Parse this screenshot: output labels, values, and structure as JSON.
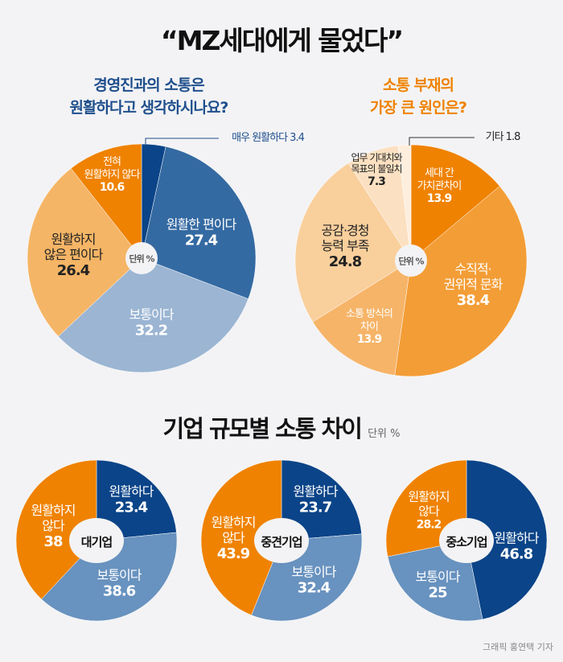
{
  "title": "“MZ세대에게 물었다”",
  "unit_label": "단위 %",
  "colors": {
    "dark_blue": "#0b4488",
    "orange": "#ef8200"
  },
  "chart_data": [
    {
      "type": "pie",
      "title": "경영진과의 소통은 원활하다고 생각하시나요?",
      "title_lines": [
        "경영진과의 소통은",
        "원활하다고 생각하시나요?"
      ],
      "unit": "단위 %",
      "slices": [
        {
          "label": "매우 원활하다",
          "value": 3.4,
          "color": "#0b4488"
        },
        {
          "label": "원활한 편이다",
          "value": 27.4,
          "color": "#346aa2"
        },
        {
          "label": "보통이다",
          "value": 32.2,
          "color": "#9bb5d3"
        },
        {
          "label": "원활하지 않은 편이다",
          "value": 26.4,
          "color": "#f5b566"
        },
        {
          "label": "전혀 원활하지 않다",
          "value": 10.6,
          "color": "#ef8200"
        }
      ]
    },
    {
      "type": "pie",
      "title": "소통 부재의 가장 큰 원인은?",
      "title_lines": [
        "소통 부재의",
        "가장 큰 원인은?"
      ],
      "unit": "단위 %",
      "slices": [
        {
          "label": "세대 간 가치관차이",
          "value": 13.9,
          "color": "#ef8200"
        },
        {
          "label": "수직적· 권위적 문화",
          "value": 38.4,
          "color": "#f39d36"
        },
        {
          "label": "소통 방식의 차이",
          "value": 13.9,
          "color": "#f6b468"
        },
        {
          "label": "공감·경청 능력 부족",
          "value": 24.8,
          "color": "#f9cf9c"
        },
        {
          "label": "업무 기대치와 목표의 불일치",
          "value": 7.3,
          "color": "#fbe0c1"
        },
        {
          "label": "기타",
          "value": 1.8,
          "color": "#fdeedd"
        }
      ]
    },
    {
      "type": "pie",
      "section_title": "기업 규모별 소통 차이",
      "section_unit": "단위 %",
      "center": "대기업",
      "slices": [
        {
          "label": "원활하다",
          "value": 23.4,
          "color": "#0b4488"
        },
        {
          "label": "보통이다",
          "value": 38.6,
          "color": "#6892bf"
        },
        {
          "label": "원활하지 않다",
          "value": 38,
          "color": "#ef8200"
        }
      ]
    },
    {
      "type": "pie",
      "center": "중견기업",
      "slices": [
        {
          "label": "원활하다",
          "value": 23.7,
          "color": "#0b4488"
        },
        {
          "label": "보통이다",
          "value": 32.4,
          "color": "#6892bf"
        },
        {
          "label": "원활하지 않다",
          "value": 43.9,
          "color": "#ef8200"
        }
      ]
    },
    {
      "type": "pie",
      "center": "중소기업",
      "slices": [
        {
          "label": "원활하다",
          "value": 46.8,
          "color": "#0b4488"
        },
        {
          "label": "보통이다",
          "value": 25,
          "color": "#6892bf"
        },
        {
          "label": "원활하지 않다",
          "value": 28.2,
          "color": "#ef8200"
        }
      ]
    }
  ],
  "labels": {
    "p1": {
      "s0": "매우 원활하다 3.4",
      "s1a": "원활한 편이다",
      "s2a": "보통이다",
      "s3a": "원활하지",
      "s3b": "않은 편이다",
      "s4a": "전혀",
      "s4b": "원활하지 않다"
    },
    "p2": {
      "s0a": "세대 간",
      "s0b": "가치관차이",
      "s1a": "수직적·",
      "s1b": "권위적 문화",
      "s2a": "소통 방식의",
      "s2b": "차이",
      "s3a": "공감·경청",
      "s3b": "능력 부족",
      "s4a": "업무 기대치와",
      "s4b": "목표의 불일치",
      "s5": "기타 1.8"
    },
    "small": {
      "a": "원활하다",
      "b": "보통이다",
      "c1": "원활하지",
      "c2": "않다"
    }
  },
  "credit": "그래픽 홍연택 기자"
}
